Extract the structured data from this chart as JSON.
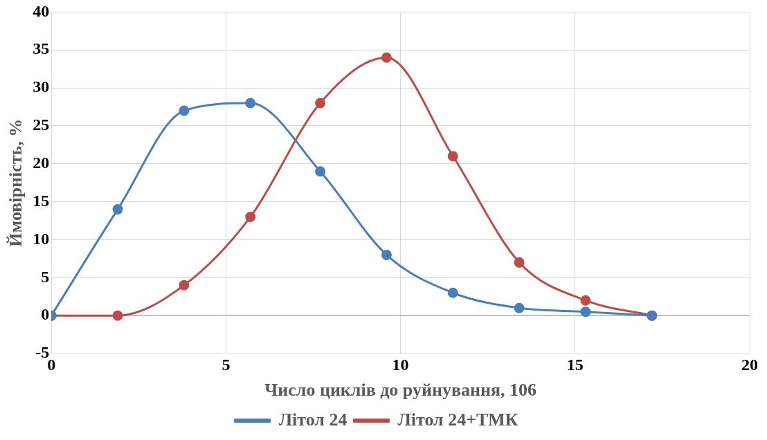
{
  "chart_data": {
    "type": "line",
    "xlabel": "Число циклів до руйнування, 106",
    "ylabel": "Ймовірність, %",
    "xlim": [
      0,
      20
    ],
    "xticks": [
      0,
      5,
      10,
      15,
      20
    ],
    "ylim": [
      -5,
      40
    ],
    "yticks": [
      -5,
      0,
      5,
      10,
      15,
      20,
      25,
      30,
      35,
      40
    ],
    "grid": true,
    "legend": "bottom",
    "marker": "circle",
    "line_style": "solid",
    "series": [
      {
        "name": "Літол 24",
        "color": "#4a7ebb",
        "x": [
          0,
          1.9,
          3.8,
          5.7,
          7.7,
          9.6,
          11.5,
          13.4,
          15.3,
          17.2
        ],
        "values": [
          0,
          14,
          27,
          28,
          19,
          8,
          3,
          1,
          0.5,
          0
        ]
      },
      {
        "name": "Літол 24+ТМК",
        "color": "#be4b48",
        "x": [
          0,
          1.9,
          3.8,
          5.7,
          7.7,
          9.6,
          11.5,
          13.4,
          15.3,
          17.2
        ],
        "values": [
          0,
          0,
          4,
          13,
          28,
          34,
          21,
          7,
          2,
          0
        ]
      }
    ]
  }
}
